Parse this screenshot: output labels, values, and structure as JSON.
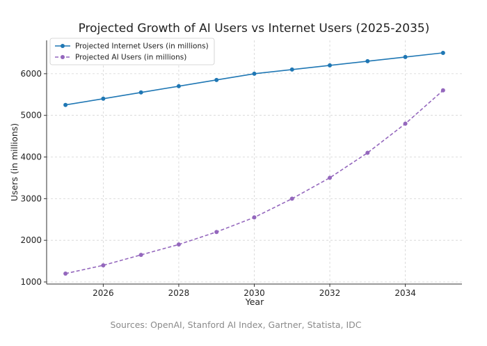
{
  "chart_data": {
    "type": "line",
    "title": "Projected Growth of AI Users vs Internet Users (2025-2035)",
    "xlabel": "Year",
    "ylabel": "Users (in millions)",
    "x": [
      2025,
      2026,
      2027,
      2028,
      2029,
      2030,
      2031,
      2032,
      2033,
      2034,
      2035
    ],
    "xlim": [
      2024.5,
      2035.5
    ],
    "ylim": [
      950,
      6800
    ],
    "xticks": [
      2026,
      2028,
      2030,
      2032,
      2034
    ],
    "yticks": [
      1000,
      2000,
      3000,
      4000,
      5000,
      6000
    ],
    "grid": true,
    "legend_position": "top-left",
    "series": [
      {
        "name": "Projected Internet Users (in millions)",
        "color": "#1f77b4",
        "line_style": "solid",
        "marker": "circle",
        "values": [
          5250,
          5400,
          5550,
          5700,
          5850,
          6000,
          6100,
          6200,
          6300,
          6400,
          6500
        ]
      },
      {
        "name": "Projected AI Users (in millions)",
        "color": "#9467bd",
        "line_style": "dashed",
        "marker": "circle",
        "values": [
          1200,
          1400,
          1650,
          1900,
          2200,
          2550,
          3000,
          3500,
          4100,
          4800,
          5600
        ]
      }
    ]
  },
  "caption": "Sources: OpenAI, Stanford AI Index, Gartner, Statista, IDC"
}
